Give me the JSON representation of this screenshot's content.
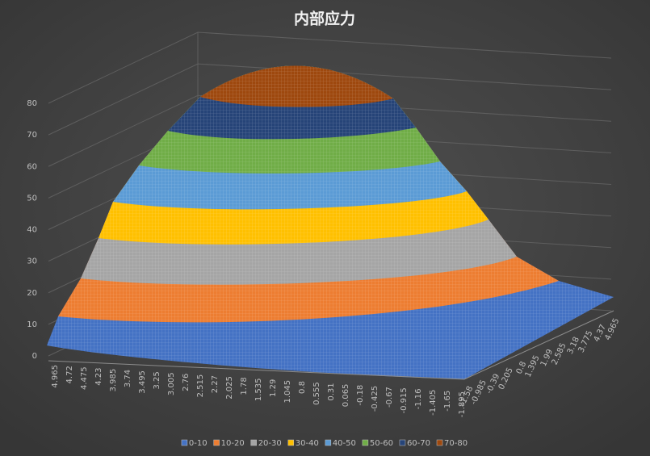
{
  "chart_data": {
    "type": "surface",
    "title": "内部应力",
    "categories": [
      4.965,
      4.72,
      4.475,
      4.23,
      3.985,
      3.74,
      3.495,
      3.25,
      3.005,
      2.76,
      2.515,
      2.27,
      2.025,
      1.78,
      1.535,
      1.29,
      1.045,
      0.8,
      0.555,
      0.31,
      0.065,
      -0.18,
      -0.425,
      -0.67,
      -0.915,
      -1.16,
      -1.405,
      -1.65,
      -1.895
    ],
    "depth_categories": [
      4.965,
      4.37,
      3.775,
      3.18,
      2.585,
      1.99,
      1.395,
      0.8,
      0.205,
      -0.39,
      -0.985,
      -1.58
    ],
    "zlim": [
      0,
      80
    ],
    "zticks": [
      0,
      10,
      20,
      30,
      40,
      50,
      60,
      70,
      80
    ],
    "grid": true,
    "legend": "bottom",
    "series": [
      {
        "name": "0-10",
        "color": "#4472c4"
      },
      {
        "name": "10-20",
        "color": "#ed7d31"
      },
      {
        "name": "20-30",
        "color": "#a5a5a5"
      },
      {
        "name": "30-40",
        "color": "#ffc000"
      },
      {
        "name": "40-50",
        "color": "#5b9bd5"
      },
      {
        "name": "50-60",
        "color": "#70ad47"
      },
      {
        "name": "60-70",
        "color": "#264478"
      },
      {
        "name": "70-80",
        "color": "#9e480e"
      }
    ]
  }
}
